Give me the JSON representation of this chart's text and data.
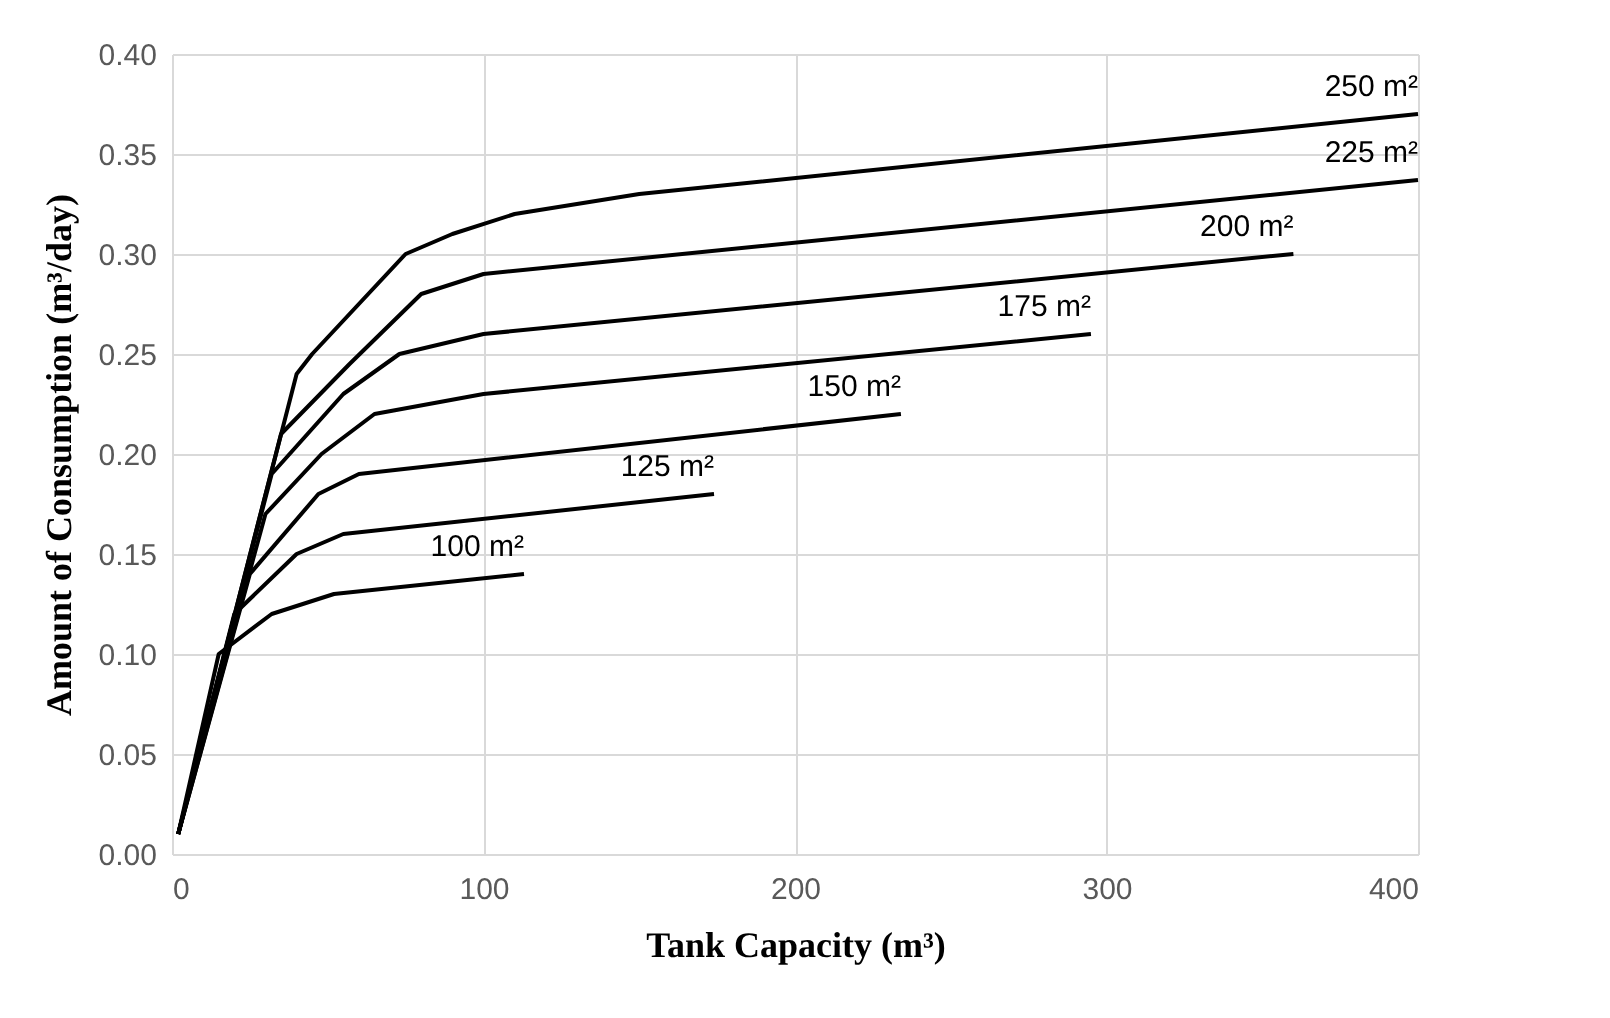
{
  "chart_data": {
    "type": "line",
    "xlabel": "Tank Capacity (m³)",
    "ylabel": "Amount of Consumption (m³/day)",
    "series": [
      {
        "name": "100 m²",
        "color": "#000000",
        "x": [
          2,
          15,
          32,
          52,
          113
        ],
        "values": [
          0.01,
          0.1,
          0.12,
          0.13,
          0.14
        ]
      },
      {
        "name": "125 m²",
        "color": "#000000",
        "x": [
          2,
          20,
          40,
          55,
          174
        ],
        "values": [
          0.01,
          0.12,
          0.15,
          0.16,
          0.18
        ]
      },
      {
        "name": "150 m²",
        "color": "#000000",
        "x": [
          2,
          25,
          47,
          60,
          234
        ],
        "values": [
          0.01,
          0.14,
          0.18,
          0.19,
          0.22
        ]
      },
      {
        "name": "175 m²",
        "color": "#000000",
        "x": [
          2,
          30,
          48,
          65,
          100,
          295
        ],
        "values": [
          0.01,
          0.17,
          0.2,
          0.22,
          0.23,
          0.26
        ]
      },
      {
        "name": "200 m²",
        "color": "#000000",
        "x": [
          2,
          32,
          55,
          73,
          100,
          360
        ],
        "values": [
          0.01,
          0.19,
          0.23,
          0.25,
          0.26,
          0.3
        ]
      },
      {
        "name": "225 m²",
        "color": "#000000",
        "x": [
          2,
          35,
          57,
          80,
          100,
          400
        ],
        "values": [
          0.01,
          0.21,
          0.245,
          0.28,
          0.29,
          0.337
        ]
      },
      {
        "name": "250 m²",
        "color": "#000000",
        "x": [
          2,
          40,
          45,
          75,
          90,
          110,
          150,
          400
        ],
        "values": [
          0.01,
          0.24,
          0.25,
          0.3,
          0.31,
          0.32,
          0.33,
          0.37
        ]
      }
    ],
    "xlim": [
      0,
      400
    ],
    "xticks": [
      0,
      100,
      200,
      300,
      400
    ],
    "ylim": [
      0,
      0.4
    ],
    "yticks": [
      {
        "value": 0,
        "label": "0.00"
      },
      0.05,
      {
        "value": 0.1,
        "label": "0.10"
      },
      0.15,
      {
        "value": 0.2,
        "label": "0.20"
      },
      0.25,
      {
        "value": 0.3,
        "label": "0.30"
      },
      0.35,
      {
        "value": 0.4,
        "label": "0.40"
      }
    ],
    "grid": true,
    "legend": false,
    "marker": "none",
    "line_style": "solid"
  }
}
